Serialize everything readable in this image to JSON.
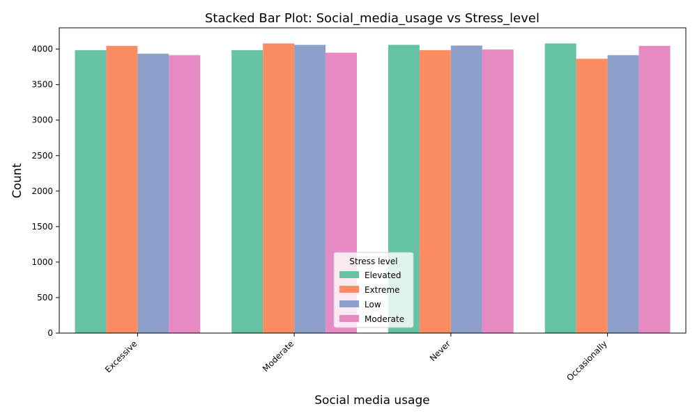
{
  "chart_data": {
    "type": "bar",
    "title": "Stacked Bar Plot: Social_media_usage vs Stress_level",
    "xlabel": "Social media usage",
    "ylabel": "Count",
    "categories": [
      "Excessive",
      "Moderate",
      "Never",
      "Occasionally"
    ],
    "ylim": [
      0,
      4300
    ],
    "yticks": [
      0,
      500,
      1000,
      1500,
      2000,
      2500,
      3000,
      3500,
      4000
    ],
    "grid": false,
    "legend": {
      "title": "Stress level",
      "placement": "lower-center"
    },
    "series": [
      {
        "name": "Elevated",
        "color": "#66c2a5",
        "values": [
          3985,
          3985,
          4060,
          4080
        ]
      },
      {
        "name": "Extreme",
        "color": "#fc8d62",
        "values": [
          4045,
          4080,
          3985,
          3865
        ]
      },
      {
        "name": "Low",
        "color": "#8da0cb",
        "values": [
          3935,
          4060,
          4050,
          3915
        ]
      },
      {
        "name": "Moderate",
        "color": "#e78ac3",
        "values": [
          3915,
          3950,
          3995,
          4045
        ]
      }
    ]
  }
}
